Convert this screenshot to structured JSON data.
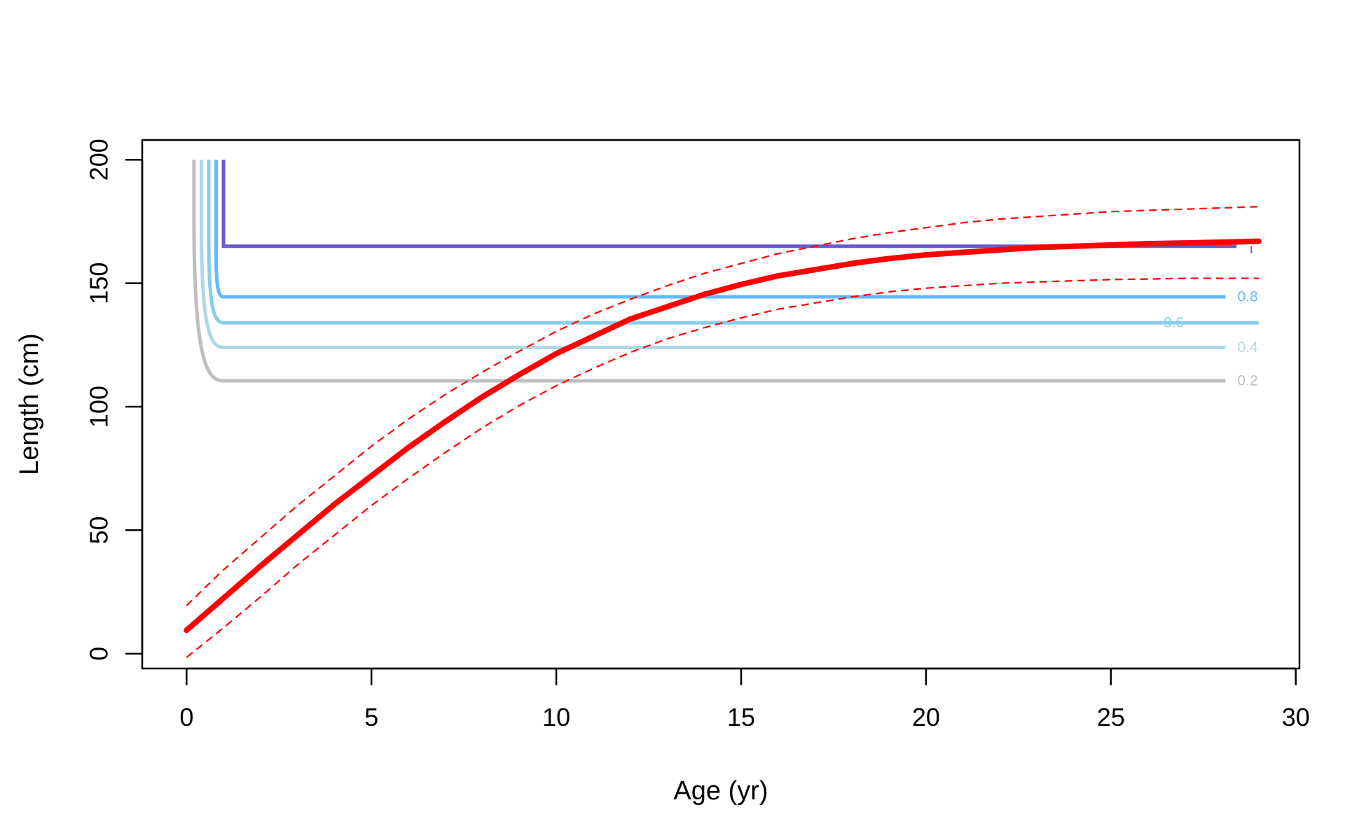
{
  "chart_data": {
    "type": "line",
    "title": "",
    "xlabel": "Age (yr)",
    "ylabel": "Length (cm)",
    "xlim": [
      -1.2,
      30.1
    ],
    "ylim": [
      -6,
      208
    ],
    "x_ticks": [
      0,
      5,
      10,
      15,
      20,
      25,
      30
    ],
    "x_tick_labels": [
      "0",
      "5",
      "10",
      "15",
      "20",
      "25",
      "30"
    ],
    "y_ticks": [
      0,
      50,
      100,
      150,
      200
    ],
    "y_tick_labels": [
      "0",
      "50",
      "100",
      "150",
      "200"
    ],
    "grid": false,
    "growth_curve": {
      "color": "#ff0000",
      "x": [
        0,
        1,
        2,
        3,
        4,
        5,
        6,
        7,
        8,
        9,
        10,
        11,
        12,
        13,
        14,
        15,
        16,
        17,
        18,
        19,
        20,
        21,
        22,
        23,
        24,
        25,
        26,
        27,
        28,
        29
      ],
      "y": [
        9.5,
        22.5,
        35.5,
        48,
        60.5,
        72,
        83.5,
        94,
        104,
        113,
        121.5,
        128.5,
        135.5,
        140.5,
        145.5,
        149.5,
        153,
        155.5,
        158,
        160,
        161.5,
        162.5,
        163.5,
        164.5,
        165,
        165.5,
        166,
        166.3,
        166.6,
        167
      ],
      "upper": [
        19.5,
        34,
        47,
        60,
        72,
        84,
        95,
        105,
        114,
        122.5,
        130.5,
        137.5,
        143.5,
        149,
        154,
        158,
        162,
        165,
        168,
        170.5,
        172.5,
        174.5,
        176,
        177,
        178,
        179,
        179.5,
        180,
        180.5,
        181
      ],
      "lower": [
        -1.5,
        10.5,
        23,
        36,
        48,
        60,
        71,
        81.5,
        91.5,
        100.5,
        108.5,
        115.5,
        122,
        127.5,
        132,
        136,
        139.5,
        142,
        144.5,
        146.5,
        148,
        149,
        150,
        150.5,
        151,
        151.5,
        151.7,
        152,
        152,
        152
      ]
    },
    "contours": [
      {
        "level": "0.2",
        "color": "#bebebe",
        "length": 110.5,
        "start_age": 0.2,
        "bend_age": 1.0,
        "end_age": 28.1,
        "label": "0.2",
        "label_age": 28.7,
        "label_dy": 0
      },
      {
        "level": "0.4",
        "color": "#add8e6",
        "length": 124,
        "start_age": 0.4,
        "bend_age": 1.0,
        "end_age": 28.1,
        "label": "0.4",
        "label_age": 28.7,
        "label_dy": 0
      },
      {
        "level": "0.6",
        "color": "#87ceeb",
        "length": 134,
        "start_age": 0.6,
        "bend_age": 1.0,
        "end_age": 29.0,
        "label": "0.6",
        "label_age": 26.7,
        "label_dy": 0
      },
      {
        "level": "0.8",
        "color": "#63b8ff",
        "length": 144.5,
        "start_age": 0.8,
        "bend_age": 1.0,
        "end_age": 28.1,
        "label": "0.8",
        "label_age": 28.7,
        "label_dy": 0
      },
      {
        "level": "",
        "color": "#6a5acd",
        "length": 165,
        "start_age": 1.0,
        "bend_age": 1.0,
        "end_age": 28.4,
        "label": "",
        "label_age": 28.8,
        "label_dy": 0
      }
    ],
    "top_length": 200
  }
}
